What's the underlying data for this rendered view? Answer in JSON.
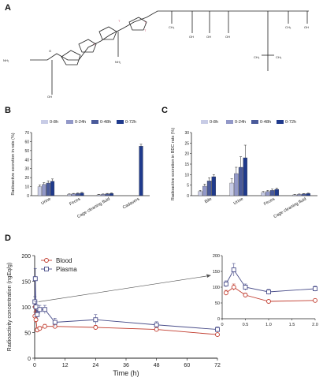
{
  "panels": {
    "a": "A",
    "b": "B",
    "c": "C",
    "d": "D"
  },
  "structure": {
    "labels": {
      "nh2": "NH₂",
      "ch2": "CH₂",
      "ch3": "CH₃",
      "c": "C",
      "o": "O",
      "oh": "OH",
      "h": "H",
      "n": "N",
      "nh": "NH",
      "cooh": "COOH",
      "t": "T",
      "nh2_lys": "NH₂",
      "ch": "CH"
    }
  },
  "chart_b": {
    "ylabel": "Radioactive excretion in rats (%)",
    "yticks": [
      "0",
      "10",
      "20",
      "30",
      "40",
      "50",
      "60",
      "70"
    ],
    "categories": [
      "Urine",
      "Feces",
      "Cage cleaning fluid",
      "Cadavers"
    ],
    "legend": [
      "0-8h",
      "0-24h",
      "0-48h",
      "0-72h"
    ],
    "colors": [
      "#c8cce6",
      "#9298c8",
      "#4a5a9a",
      "#1f3a8c"
    ],
    "ylim": [
      0,
      70
    ],
    "series": [
      {
        "name": "0-8h",
        "values": [
          10.0,
          1.5,
          1.0,
          null
        ]
      },
      {
        "name": "0-24h",
        "values": [
          12.5,
          2.0,
          1.5,
          null
        ]
      },
      {
        "name": "0-48h",
        "values": [
          14.0,
          2.5,
          2.0,
          null
        ]
      },
      {
        "name": "0-72h",
        "values": [
          16.0,
          3.0,
          2.5,
          55.0
        ]
      }
    ],
    "errors": [
      [
        2.0,
        0.5,
        0.4,
        null
      ],
      [
        2.0,
        0.5,
        0.4,
        null
      ],
      [
        2.5,
        0.5,
        0.5,
        null
      ],
      [
        2.5,
        0.6,
        0.5,
        2.0
      ]
    ]
  },
  "chart_c": {
    "ylabel": "Radioactive excretion in BDC rats (%)",
    "yticks": [
      "0",
      "5",
      "10",
      "15",
      "20",
      "25",
      "30"
    ],
    "categories": [
      "Bile",
      "Urine",
      "Feces",
      "Cage cleaning fluid"
    ],
    "legend": [
      "0-8h",
      "0-24h",
      "0-48h",
      "0-72h"
    ],
    "colors": [
      "#c8cce6",
      "#9298c8",
      "#4a5a9a",
      "#1f3a8c"
    ],
    "ylim": [
      0,
      30
    ],
    "series": [
      {
        "name": "0-8h",
        "values": [
          2.0,
          6.0,
          1.5,
          0.4
        ]
      },
      {
        "name": "0-24h",
        "values": [
          4.5,
          10.5,
          2.0,
          0.6
        ]
      },
      {
        "name": "0-48h",
        "values": [
          7.0,
          13.5,
          2.5,
          0.8
        ]
      },
      {
        "name": "0-72h",
        "values": [
          9.0,
          18.0,
          3.0,
          1.0
        ]
      }
    ],
    "errors": [
      [
        0.5,
        2.0,
        0.5,
        0.2
      ],
      [
        1.0,
        3.0,
        0.5,
        0.2
      ],
      [
        1.5,
        5.0,
        0.6,
        0.2
      ],
      [
        1.0,
        6.0,
        0.6,
        0.2
      ]
    ]
  },
  "chart_data": {
    "type": "line",
    "xlabel": "Time (h)",
    "ylabel": "Radioactivity concentration (ngEq/g)",
    "xticks": [
      "0",
      "12",
      "24",
      "36",
      "48",
      "60",
      "72"
    ],
    "yticks": [
      "0",
      "50",
      "100",
      "150",
      "200"
    ],
    "xlim": [
      0,
      72
    ],
    "ylim": [
      0,
      200
    ],
    "series": [
      {
        "name": "Blood",
        "color": "#c0392b",
        "x": [
          0.083,
          0.25,
          0.5,
          1,
          2,
          4,
          8,
          24,
          48,
          72
        ],
        "y": [
          82,
          100,
          75,
          55,
          58,
          62,
          62,
          60,
          56,
          46
        ],
        "err": [
          8,
          10,
          6,
          4,
          4,
          4,
          4,
          4,
          4,
          3
        ]
      },
      {
        "name": "Plasma",
        "color": "#4a4e8a",
        "x": [
          0.083,
          0.25,
          0.5,
          1,
          2,
          4,
          8,
          24,
          48,
          72
        ],
        "y": [
          110,
          155,
          100,
          85,
          95,
          95,
          70,
          75,
          65,
          56
        ],
        "err": [
          10,
          20,
          10,
          8,
          8,
          8,
          8,
          10,
          6,
          5
        ]
      }
    ],
    "inset": {
      "xticks": [
        "0",
        "0.5",
        "1.0",
        "1.5",
        "2.0"
      ],
      "yticks": [
        "0",
        "50",
        "100",
        "150",
        "200"
      ],
      "xlim": [
        0,
        2
      ],
      "ylim": [
        0,
        200
      ]
    }
  }
}
